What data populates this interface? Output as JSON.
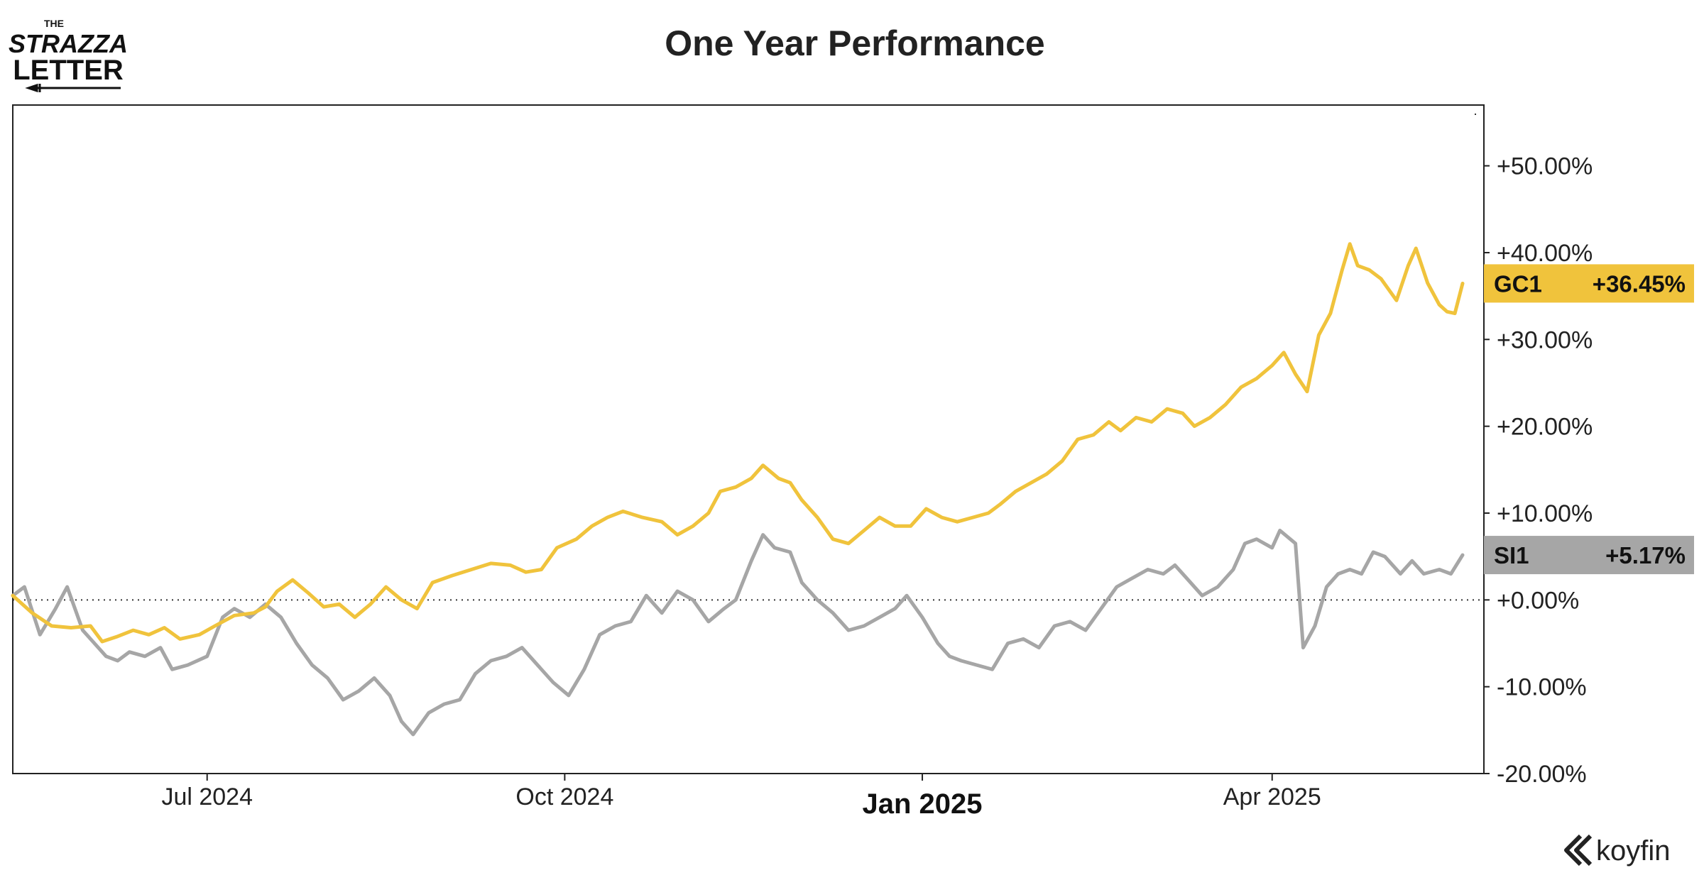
{
  "logo": {
    "line1": "THE",
    "line2": "STRAZZA",
    "line3": "LETTER"
  },
  "brand": {
    "name": "koyfin",
    "icon": "koyfin-chevron-icon"
  },
  "chart_data": {
    "type": "line",
    "title": "One Year Performance",
    "xlabel": "",
    "ylabel": "",
    "x_range": [
      "2024-05-12",
      "2025-05-20"
    ],
    "ylim": [
      -20,
      57
    ],
    "yticks": [
      50,
      40,
      30,
      20,
      10,
      0,
      -10,
      -20
    ],
    "ytick_labels": [
      "+50.00%",
      "+40.00%",
      "+30.00%",
      "+20.00%",
      "+10.00%",
      "+0.00%",
      "-10.00%",
      "-20.00%"
    ],
    "xticks": [
      {
        "date": "2024-07-01",
        "label": "Jul 2024",
        "bold": false
      },
      {
        "date": "2024-10-01",
        "label": "Oct 2024",
        "bold": false
      },
      {
        "date": "2025-01-01",
        "label": "Jan 2025",
        "bold": true
      },
      {
        "date": "2025-04-01",
        "label": "Apr 2025",
        "bold": false
      }
    ],
    "baseline": 0,
    "grid": false,
    "series": [
      {
        "name": "GC1",
        "last_label": "+36.45%",
        "color": "#f0c33c",
        "points": [
          [
            "2024-05-12",
            0.5
          ],
          [
            "2024-05-17",
            -1.5
          ],
          [
            "2024-05-22",
            -3.0
          ],
          [
            "2024-05-27",
            -3.2
          ],
          [
            "2024-06-01",
            -3.0
          ],
          [
            "2024-06-04",
            -4.8
          ],
          [
            "2024-06-08",
            -4.2
          ],
          [
            "2024-06-12",
            -3.5
          ],
          [
            "2024-06-16",
            -4.0
          ],
          [
            "2024-06-20",
            -3.2
          ],
          [
            "2024-06-24",
            -4.5
          ],
          [
            "2024-06-29",
            -4.0
          ],
          [
            "2024-07-03",
            -3.0
          ],
          [
            "2024-07-08",
            -1.8
          ],
          [
            "2024-07-13",
            -1.5
          ],
          [
            "2024-07-16",
            -0.8
          ],
          [
            "2024-07-19",
            1.0
          ],
          [
            "2024-07-23",
            2.3
          ],
          [
            "2024-07-27",
            0.8
          ],
          [
            "2024-07-31",
            -0.8
          ],
          [
            "2024-08-04",
            -0.5
          ],
          [
            "2024-08-08",
            -2.0
          ],
          [
            "2024-08-12",
            -0.5
          ],
          [
            "2024-08-16",
            1.5
          ],
          [
            "2024-08-20",
            0.0
          ],
          [
            "2024-08-24",
            -1.0
          ],
          [
            "2024-08-28",
            2.0
          ],
          [
            "2024-09-02",
            2.8
          ],
          [
            "2024-09-07",
            3.5
          ],
          [
            "2024-09-12",
            4.2
          ],
          [
            "2024-09-17",
            4.0
          ],
          [
            "2024-09-21",
            3.2
          ],
          [
            "2024-09-25",
            3.5
          ],
          [
            "2024-09-29",
            6.0
          ],
          [
            "2024-10-04",
            7.0
          ],
          [
            "2024-10-08",
            8.5
          ],
          [
            "2024-10-12",
            9.5
          ],
          [
            "2024-10-16",
            10.2
          ],
          [
            "2024-10-21",
            9.5
          ],
          [
            "2024-10-26",
            9.0
          ],
          [
            "2024-10-30",
            7.5
          ],
          [
            "2024-11-03",
            8.5
          ],
          [
            "2024-11-07",
            10.0
          ],
          [
            "2024-11-10",
            12.5
          ],
          [
            "2024-11-14",
            13.0
          ],
          [
            "2024-11-18",
            14.0
          ],
          [
            "2024-11-21",
            15.5
          ],
          [
            "2024-11-25",
            14.0
          ],
          [
            "2024-11-28",
            13.5
          ],
          [
            "2024-12-01",
            11.5
          ],
          [
            "2024-12-05",
            9.5
          ],
          [
            "2024-12-09",
            7.0
          ],
          [
            "2024-12-13",
            6.5
          ],
          [
            "2024-12-17",
            8.0
          ],
          [
            "2024-12-21",
            9.5
          ],
          [
            "2024-12-25",
            8.5
          ],
          [
            "2024-12-29",
            8.5
          ],
          [
            "2025-01-02",
            10.5
          ],
          [
            "2025-01-06",
            9.5
          ],
          [
            "2025-01-10",
            9.0
          ],
          [
            "2025-01-14",
            9.5
          ],
          [
            "2025-01-18",
            10.0
          ],
          [
            "2025-01-21",
            11.0
          ],
          [
            "2025-01-25",
            12.5
          ],
          [
            "2025-01-29",
            13.5
          ],
          [
            "2025-02-02",
            14.5
          ],
          [
            "2025-02-06",
            16.0
          ],
          [
            "2025-02-10",
            18.5
          ],
          [
            "2025-02-14",
            19.0
          ],
          [
            "2025-02-18",
            20.5
          ],
          [
            "2025-02-21",
            19.5
          ],
          [
            "2025-02-25",
            21.0
          ],
          [
            "2025-03-01",
            20.5
          ],
          [
            "2025-03-05",
            22.0
          ],
          [
            "2025-03-09",
            21.5
          ],
          [
            "2025-03-12",
            20.0
          ],
          [
            "2025-03-16",
            21.0
          ],
          [
            "2025-03-20",
            22.5
          ],
          [
            "2025-03-24",
            24.5
          ],
          [
            "2025-03-28",
            25.5
          ],
          [
            "2025-04-01",
            27.0
          ],
          [
            "2025-04-04",
            28.5
          ],
          [
            "2025-04-07",
            26.0
          ],
          [
            "2025-04-10",
            24.0
          ],
          [
            "2025-04-13",
            30.5
          ],
          [
            "2025-04-16",
            33.0
          ],
          [
            "2025-04-19",
            38.0
          ],
          [
            "2025-04-21",
            41.0
          ],
          [
            "2025-04-23",
            38.5
          ],
          [
            "2025-04-26",
            38.0
          ],
          [
            "2025-04-29",
            37.0
          ],
          [
            "2025-05-03",
            34.5
          ],
          [
            "2025-05-06",
            38.5
          ],
          [
            "2025-05-08",
            40.5
          ],
          [
            "2025-05-11",
            36.5
          ],
          [
            "2025-05-14",
            34.0
          ],
          [
            "2025-05-16",
            33.2
          ],
          [
            "2025-05-18",
            33.0
          ],
          [
            "2025-05-20",
            36.45
          ]
        ]
      },
      {
        "name": "SI1",
        "last_label": "+5.17%",
        "color": "#a6a6a6",
        "points": [
          [
            "2024-05-12",
            0.5
          ],
          [
            "2024-05-15",
            1.5
          ],
          [
            "2024-05-19",
            -4.0
          ],
          [
            "2024-05-23",
            -1.0
          ],
          [
            "2024-05-26",
            1.5
          ],
          [
            "2024-05-30",
            -3.5
          ],
          [
            "2024-06-02",
            -5.0
          ],
          [
            "2024-06-05",
            -6.5
          ],
          [
            "2024-06-08",
            -7.0
          ],
          [
            "2024-06-11",
            -6.0
          ],
          [
            "2024-06-15",
            -6.5
          ],
          [
            "2024-06-19",
            -5.5
          ],
          [
            "2024-06-22",
            -8.0
          ],
          [
            "2024-06-26",
            -7.5
          ],
          [
            "2024-07-01",
            -6.5
          ],
          [
            "2024-07-05",
            -2.0
          ],
          [
            "2024-07-08",
            -1.0
          ],
          [
            "2024-07-12",
            -2.0
          ],
          [
            "2024-07-16",
            -0.5
          ],
          [
            "2024-07-20",
            -2.0
          ],
          [
            "2024-07-24",
            -5.0
          ],
          [
            "2024-07-28",
            -7.5
          ],
          [
            "2024-08-01",
            -9.0
          ],
          [
            "2024-08-05",
            -11.5
          ],
          [
            "2024-08-09",
            -10.5
          ],
          [
            "2024-08-13",
            -9.0
          ],
          [
            "2024-08-17",
            -11.0
          ],
          [
            "2024-08-20",
            -14.0
          ],
          [
            "2024-08-23",
            -15.5
          ],
          [
            "2024-08-27",
            -13.0
          ],
          [
            "2024-08-31",
            -12.0
          ],
          [
            "2024-09-04",
            -11.5
          ],
          [
            "2024-09-08",
            -8.5
          ],
          [
            "2024-09-12",
            -7.0
          ],
          [
            "2024-09-16",
            -6.5
          ],
          [
            "2024-09-20",
            -5.5
          ],
          [
            "2024-09-24",
            -7.5
          ],
          [
            "2024-09-28",
            -9.5
          ],
          [
            "2024-10-02",
            -11.0
          ],
          [
            "2024-10-06",
            -8.0
          ],
          [
            "2024-10-10",
            -4.0
          ],
          [
            "2024-10-14",
            -3.0
          ],
          [
            "2024-10-18",
            -2.5
          ],
          [
            "2024-10-22",
            0.5
          ],
          [
            "2024-10-26",
            -1.5
          ],
          [
            "2024-10-30",
            1.0
          ],
          [
            "2024-11-03",
            0.0
          ],
          [
            "2024-11-07",
            -2.5
          ],
          [
            "2024-11-11",
            -1.0
          ],
          [
            "2024-11-14",
            0.0
          ],
          [
            "2024-11-18",
            4.5
          ],
          [
            "2024-11-21",
            7.5
          ],
          [
            "2024-11-24",
            6.0
          ],
          [
            "2024-11-28",
            5.5
          ],
          [
            "2024-12-01",
            2.0
          ],
          [
            "2024-12-05",
            0.0
          ],
          [
            "2024-12-09",
            -1.5
          ],
          [
            "2024-12-13",
            -3.5
          ],
          [
            "2024-12-17",
            -3.0
          ],
          [
            "2024-12-21",
            -2.0
          ],
          [
            "2024-12-25",
            -1.0
          ],
          [
            "2024-12-28",
            0.5
          ],
          [
            "2025-01-01",
            -2.0
          ],
          [
            "2025-01-05",
            -5.0
          ],
          [
            "2025-01-08",
            -6.5
          ],
          [
            "2025-01-11",
            -7.0
          ],
          [
            "2025-01-15",
            -7.5
          ],
          [
            "2025-01-19",
            -8.0
          ],
          [
            "2025-01-23",
            -5.0
          ],
          [
            "2025-01-27",
            -4.5
          ],
          [
            "2025-01-31",
            -5.5
          ],
          [
            "2025-02-04",
            -3.0
          ],
          [
            "2025-02-08",
            -2.5
          ],
          [
            "2025-02-12",
            -3.5
          ],
          [
            "2025-02-16",
            -1.0
          ],
          [
            "2025-02-20",
            1.5
          ],
          [
            "2025-02-24",
            2.5
          ],
          [
            "2025-02-28",
            3.5
          ],
          [
            "2025-03-04",
            3.0
          ],
          [
            "2025-03-07",
            4.0
          ],
          [
            "2025-03-10",
            2.5
          ],
          [
            "2025-03-14",
            0.5
          ],
          [
            "2025-03-18",
            1.5
          ],
          [
            "2025-03-22",
            3.5
          ],
          [
            "2025-03-25",
            6.5
          ],
          [
            "2025-03-28",
            7.0
          ],
          [
            "2025-04-01",
            6.0
          ],
          [
            "2025-04-03",
            8.0
          ],
          [
            "2025-04-07",
            6.5
          ],
          [
            "2025-04-09",
            -5.5
          ],
          [
            "2025-04-12",
            -3.0
          ],
          [
            "2025-04-15",
            1.5
          ],
          [
            "2025-04-18",
            3.0
          ],
          [
            "2025-04-21",
            3.5
          ],
          [
            "2025-04-24",
            3.0
          ],
          [
            "2025-04-27",
            5.5
          ],
          [
            "2025-04-30",
            5.0
          ],
          [
            "2025-05-04",
            3.0
          ],
          [
            "2025-05-07",
            4.5
          ],
          [
            "2025-05-10",
            3.0
          ],
          [
            "2025-05-14",
            3.5
          ],
          [
            "2025-05-17",
            3.0
          ],
          [
            "2025-05-20",
            5.17
          ]
        ]
      }
    ]
  }
}
